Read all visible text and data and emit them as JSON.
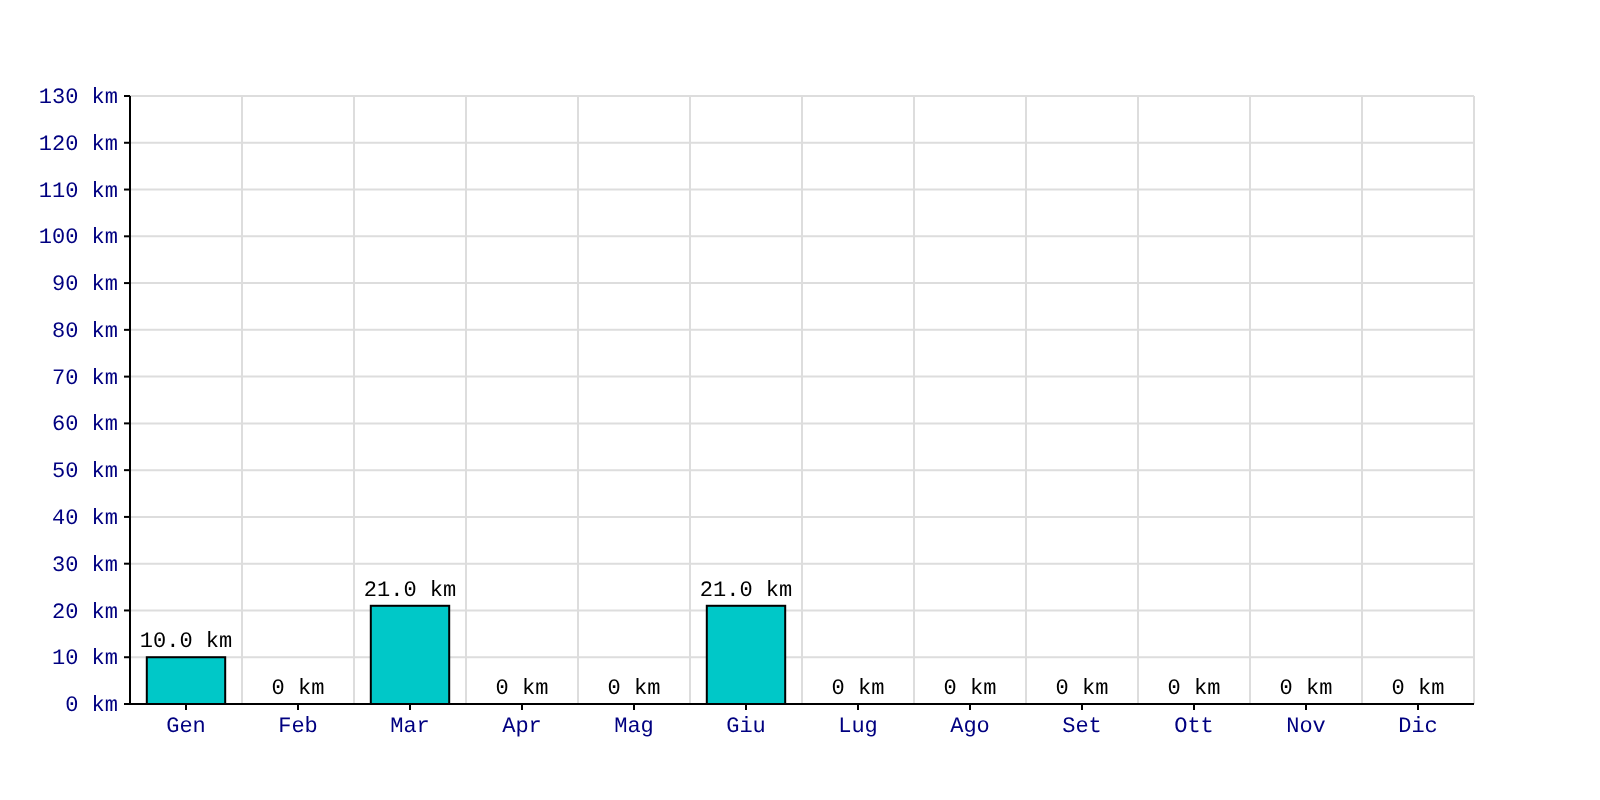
{
  "chart_data": {
    "type": "bar",
    "categories": [
      "Gen",
      "Feb",
      "Mar",
      "Apr",
      "Mag",
      "Giu",
      "Lug",
      "Ago",
      "Set",
      "Ott",
      "Nov",
      "Dic"
    ],
    "values": [
      10,
      0,
      21,
      0,
      0,
      21,
      0,
      0,
      0,
      0,
      0,
      0
    ],
    "value_labels": [
      "10.0 km",
      "0 km",
      "21.0 km",
      "0 km",
      "0 km",
      "21.0 km",
      "0 km",
      "0 km",
      "0 km",
      "0 km",
      "0 km",
      "0 km"
    ],
    "color": "#00c8c8",
    "ylim": [
      0,
      130
    ],
    "yticks": [
      {
        "value": 0,
        "label": "0 km"
      },
      {
        "value": 10,
        "label": "10 km"
      },
      {
        "value": 20,
        "label": "20 km"
      },
      {
        "value": 30,
        "label": "30 km"
      },
      {
        "value": 40,
        "label": "40 km"
      },
      {
        "value": 50,
        "label": "50 km"
      },
      {
        "value": 60,
        "label": "60 km"
      },
      {
        "value": 70,
        "label": "70 km"
      },
      {
        "value": 80,
        "label": "80 km"
      },
      {
        "value": 90,
        "label": "90 km"
      },
      {
        "value": 100,
        "label": "100 km"
      },
      {
        "value": 110,
        "label": "110 km"
      },
      {
        "value": 120,
        "label": "120 km"
      },
      {
        "value": 130,
        "label": "130 km"
      }
    ],
    "grid": true
  }
}
